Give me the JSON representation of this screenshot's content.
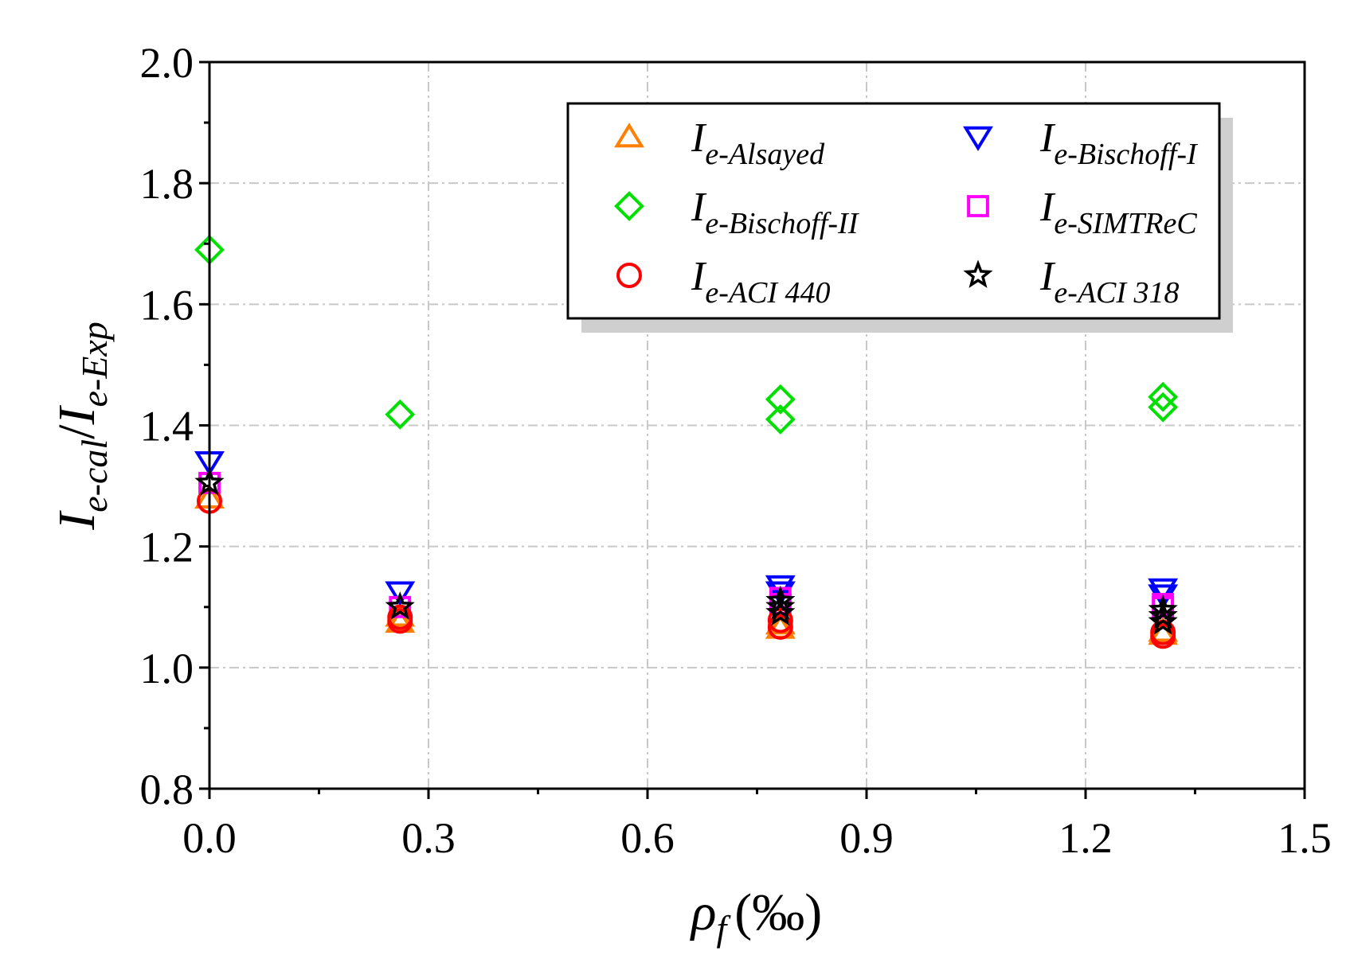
{
  "chart_data": {
    "type": "scatter",
    "title": "",
    "xlabel": {
      "main": "ρ",
      "sub": "f",
      "unit": "(‰)"
    },
    "ylabel": {
      "num_main": "I",
      "num_sub": "e-cal",
      "sep": "/",
      "den_main": "I",
      "den_sub": "e-Exp"
    },
    "xlim": [
      0,
      1.5
    ],
    "ylim": [
      0.8,
      2.0
    ],
    "xticks": [
      "0.0",
      "0.3",
      "0.6",
      "0.9",
      "1.2",
      "1.5"
    ],
    "yticks": [
      "0.8",
      "1.0",
      "1.2",
      "1.4",
      "1.6",
      "1.8",
      "2.0"
    ],
    "grid": true,
    "legend_position": "top-right",
    "series": [
      {
        "name": "I",
        "sub": "e-Alsayed",
        "marker": "triangle-up",
        "color": "#FF8000",
        "x": [
          0.0,
          0.261,
          0.261,
          0.782,
          0.782,
          1.306,
          1.306
        ],
        "y": [
          1.28,
          1.075,
          1.085,
          1.065,
          1.072,
          1.055,
          1.06
        ]
      },
      {
        "name": "I",
        "sub": "e-Bischoff-I",
        "marker": "triangle-down",
        "color": "#0000FF",
        "x": [
          0.0,
          0.261,
          0.782,
          0.782,
          1.306,
          1.306
        ],
        "y": [
          1.34,
          1.125,
          1.135,
          1.125,
          1.13,
          1.12
        ]
      },
      {
        "name": "I",
        "sub": "e-Bischoff-II",
        "marker": "diamond",
        "color": "#00E000",
        "x": [
          0.0,
          0.261,
          0.782,
          0.782,
          1.306,
          1.306
        ],
        "y": [
          1.69,
          1.418,
          1.443,
          1.41,
          1.447,
          1.43
        ]
      },
      {
        "name": "I",
        "sub": "e-SIMTReC",
        "marker": "square",
        "color": "#FF00FF",
        "x": [
          0.0,
          0.261,
          0.782,
          0.782,
          1.306,
          1.306
        ],
        "y": [
          1.305,
          1.1,
          1.115,
          1.105,
          1.105,
          1.1
        ]
      },
      {
        "name": "I",
        "sub": "e-ACI 440",
        "marker": "circle",
        "color": "#FF0000",
        "x": [
          0.0,
          0.261,
          0.261,
          0.782,
          0.782,
          1.306,
          1.306
        ],
        "y": [
          1.275,
          1.077,
          1.083,
          1.067,
          1.078,
          1.052,
          1.058
        ]
      },
      {
        "name": "I",
        "sub": "e-ACI 318",
        "marker": "star",
        "color": "#000000",
        "x": [
          0.0,
          0.261,
          0.782,
          0.782,
          0.782,
          1.306,
          1.306,
          1.306
        ],
        "y": [
          1.305,
          1.1,
          1.11,
          1.1,
          1.09,
          1.095,
          1.085,
          1.075
        ]
      }
    ]
  }
}
